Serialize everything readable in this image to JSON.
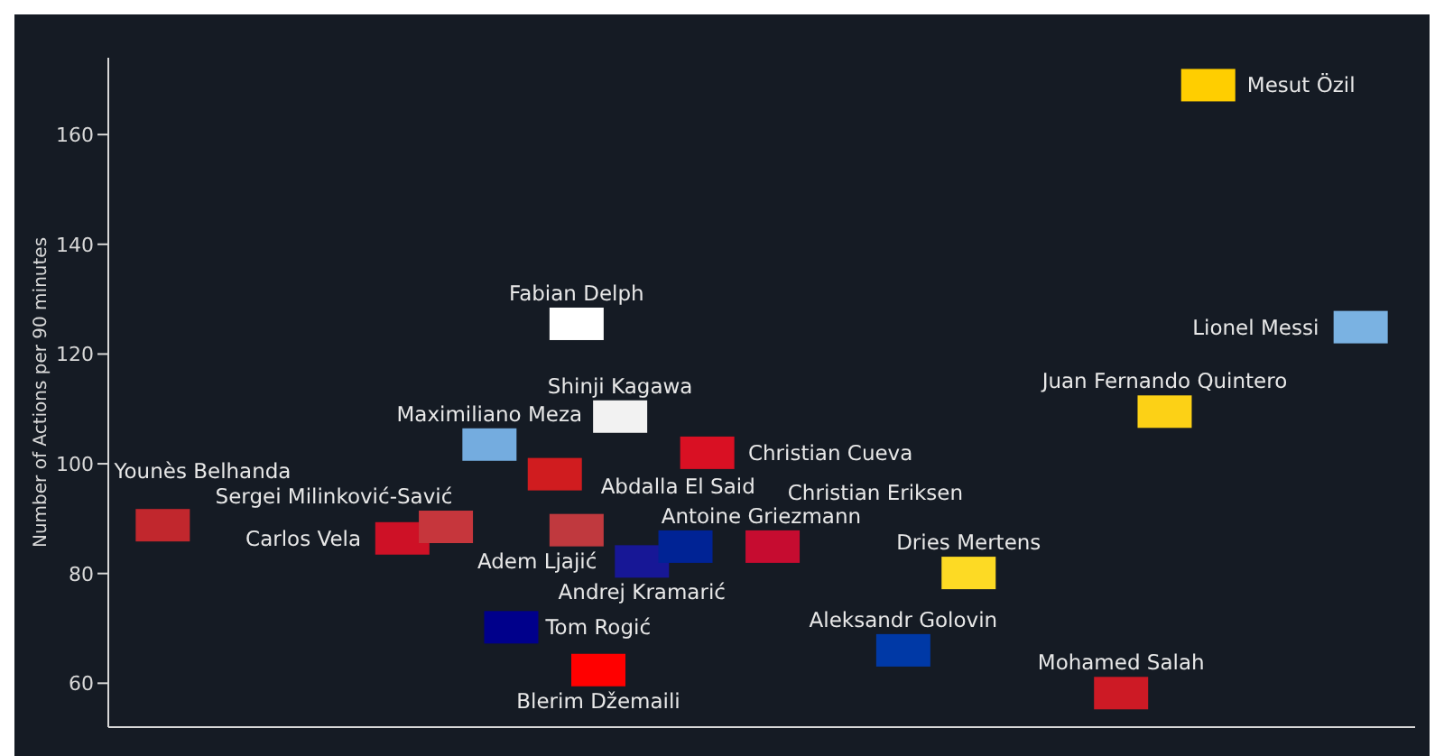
{
  "chart_data": {
    "type": "scatter",
    "ylabel": "Number of Actions per 90 minutes",
    "marker": "square",
    "ylim": [
      52,
      174
    ],
    "yticks": [
      60,
      80,
      100,
      120,
      140,
      160
    ],
    "categories": [
      null,
      null,
      null,
      null,
      null,
      null,
      null,
      null,
      null,
      null,
      null,
      null,
      null,
      null,
      null,
      null,
      null,
      null,
      null,
      null,
      null,
      null,
      null,
      null,
      null,
      null,
      null,
      null,
      null,
      null,
      null,
      null,
      null,
      null,
      null,
      null,
      null,
      null,
      null,
      null,
      null,
      null,
      null,
      null,
      null,
      null,
      null,
      null,
      null,
      null,
      null,
      null,
      null,
      null,
      null,
      null,
      null,
      null,
      null,
      null
    ],
    "series": [
      {
        "name": "Younès Belhanda",
        "color": "#c1272d",
        "values": [
          null,
          null,
          88.8,
          null,
          null,
          null,
          null,
          null,
          null,
          null,
          null,
          null,
          null,
          null,
          null,
          null,
          null,
          null,
          null,
          null,
          null,
          null,
          null,
          null,
          null,
          null,
          null,
          null,
          null,
          null,
          null,
          null,
          null,
          null,
          null,
          null,
          null,
          null,
          null,
          null,
          null,
          null,
          null,
          null,
          null,
          null,
          null,
          null,
          null,
          null,
          null,
          null,
          null,
          null,
          null,
          null,
          null,
          null,
          null,
          null
        ]
      },
      {
        "name": "Carlos Vela",
        "color": "#ce1126",
        "values": [
          null,
          null,
          null,
          null,
          null,
          null,
          null,
          null,
          null,
          null,
          null,
          null,
          null,
          86.4,
          null,
          null,
          null,
          null,
          null,
          null,
          null,
          null,
          null,
          null,
          null,
          null,
          null,
          null,
          null,
          null,
          null,
          null,
          null,
          null,
          null,
          null,
          null,
          null,
          null,
          null,
          null,
          null,
          null,
          null,
          null,
          null,
          null,
          null,
          null,
          null,
          null,
          null,
          null,
          null,
          null,
          null,
          null,
          null,
          null,
          null
        ]
      },
      {
        "name": "Sergei Milinković-Savić",
        "color": "#c6363c",
        "values": [
          null,
          null,
          null,
          null,
          null,
          null,
          null,
          null,
          null,
          null,
          null,
          null,
          null,
          null,
          null,
          88.5,
          null,
          null,
          null,
          null,
          null,
          null,
          null,
          null,
          null,
          null,
          null,
          null,
          null,
          null,
          null,
          null,
          null,
          null,
          null,
          null,
          null,
          null,
          null,
          null,
          null,
          null,
          null,
          null,
          null,
          null,
          null,
          null,
          null,
          null,
          null,
          null,
          null,
          null,
          null,
          null,
          null,
          null,
          null,
          null
        ]
      },
      {
        "name": "Maximiliano Meza",
        "color": "#74acdf",
        "values": [
          null,
          null,
          null,
          null,
          null,
          null,
          null,
          null,
          null,
          null,
          null,
          null,
          null,
          null,
          null,
          null,
          null,
          103.5,
          null,
          null,
          null,
          null,
          null,
          null,
          null,
          null,
          null,
          null,
          null,
          null,
          null,
          null,
          null,
          null,
          null,
          null,
          null,
          null,
          null,
          null,
          null,
          null,
          null,
          null,
          null,
          null,
          null,
          null,
          null,
          null,
          null,
          null,
          null,
          null,
          null,
          null,
          null,
          null,
          null,
          null
        ]
      },
      {
        "name": "Fabian Delph",
        "color": "#ffffff",
        "values": [
          null,
          null,
          null,
          null,
          null,
          null,
          null,
          null,
          null,
          null,
          null,
          null,
          null,
          null,
          null,
          null,
          null,
          null,
          null,
          null,
          null,
          125.5,
          null,
          null,
          null,
          null,
          null,
          null,
          null,
          null,
          null,
          null,
          null,
          null,
          null,
          null,
          null,
          null,
          null,
          null,
          null,
          null,
          null,
          null,
          null,
          null,
          null,
          null,
          null,
          null,
          null,
          null,
          null,
          null,
          null,
          null,
          null,
          null,
          null,
          null
        ]
      },
      {
        "name": "Shinji Kagawa",
        "color": "#f2f2f2",
        "values": [
          null,
          null,
          null,
          null,
          null,
          null,
          null,
          null,
          null,
          null,
          null,
          null,
          null,
          null,
          null,
          null,
          null,
          null,
          null,
          null,
          null,
          null,
          null,
          108.6,
          null,
          null,
          null,
          null,
          null,
          null,
          null,
          null,
          null,
          null,
          null,
          null,
          null,
          null,
          null,
          null,
          null,
          null,
          null,
          null,
          null,
          null,
          null,
          null,
          null,
          null,
          null,
          null,
          null,
          null,
          null,
          null,
          null,
          null,
          null,
          null
        ]
      },
      {
        "name": "Abdalla El Said",
        "color": "#d01c1f",
        "values": [
          null,
          null,
          null,
          null,
          null,
          null,
          null,
          null,
          null,
          null,
          null,
          null,
          null,
          null,
          null,
          null,
          null,
          null,
          null,
          null,
          98.1,
          null,
          null,
          null,
          null,
          null,
          null,
          null,
          null,
          null,
          null,
          null,
          null,
          null,
          null,
          null,
          null,
          null,
          null,
          null,
          null,
          null,
          null,
          null,
          null,
          null,
          null,
          null,
          null,
          null,
          null,
          null,
          null,
          null,
          null,
          null,
          null,
          null,
          null,
          null
        ]
      },
      {
        "name": "Adem Ljajić",
        "color": "#c0393e",
        "values": [
          null,
          null,
          null,
          null,
          null,
          null,
          null,
          null,
          null,
          null,
          null,
          null,
          null,
          null,
          null,
          null,
          null,
          null,
          null,
          null,
          null,
          87.9,
          null,
          null,
          null,
          null,
          null,
          null,
          null,
          null,
          null,
          null,
          null,
          null,
          null,
          null,
          null,
          null,
          null,
          null,
          null,
          null,
          null,
          null,
          null,
          null,
          null,
          null,
          null,
          null,
          null,
          null,
          null,
          null,
          null,
          null,
          null,
          null,
          null,
          null
        ]
      },
      {
        "name": "Andrej Kramarić",
        "color": "#171796",
        "values": [
          null,
          null,
          null,
          null,
          null,
          null,
          null,
          null,
          null,
          null,
          null,
          null,
          null,
          null,
          null,
          null,
          null,
          null,
          null,
          null,
          null,
          null,
          null,
          null,
          82.2,
          null,
          null,
          null,
          null,
          null,
          null,
          null,
          null,
          null,
          null,
          null,
          null,
          null,
          null,
          null,
          null,
          null,
          null,
          null,
          null,
          null,
          null,
          null,
          null,
          null,
          null,
          null,
          null,
          null,
          null,
          null,
          null,
          null,
          null,
          null
        ]
      },
      {
        "name": "Antoine Griezmann",
        "color": "#002395",
        "values": [
          null,
          null,
          null,
          null,
          null,
          null,
          null,
          null,
          null,
          null,
          null,
          null,
          null,
          null,
          null,
          null,
          null,
          null,
          null,
          null,
          null,
          null,
          null,
          null,
          null,
          null,
          84.9,
          null,
          null,
          null,
          null,
          null,
          null,
          null,
          null,
          null,
          null,
          null,
          null,
          null,
          null,
          null,
          null,
          null,
          null,
          null,
          null,
          null,
          null,
          null,
          null,
          null,
          null,
          null,
          null,
          null,
          null,
          null,
          null,
          null
        ]
      },
      {
        "name": "Christian Cueva",
        "color": "#d91023",
        "values": [
          null,
          null,
          null,
          null,
          null,
          null,
          null,
          null,
          null,
          null,
          null,
          null,
          null,
          null,
          null,
          null,
          null,
          null,
          null,
          null,
          null,
          null,
          null,
          null,
          null,
          null,
          null,
          102.0,
          null,
          null,
          null,
          null,
          null,
          null,
          null,
          null,
          null,
          null,
          null,
          null,
          null,
          null,
          null,
          null,
          null,
          null,
          null,
          null,
          null,
          null,
          null,
          null,
          null,
          null,
          null,
          null,
          null,
          null,
          null,
          null
        ]
      },
      {
        "name": "Christian Eriksen",
        "color": "#c60c30",
        "values": [
          null,
          null,
          null,
          null,
          null,
          null,
          null,
          null,
          null,
          null,
          null,
          null,
          null,
          null,
          null,
          null,
          null,
          null,
          null,
          null,
          null,
          null,
          null,
          null,
          null,
          null,
          null,
          null,
          null,
          null,
          84.9,
          null,
          null,
          null,
          null,
          null,
          null,
          null,
          null,
          null,
          null,
          null,
          null,
          null,
          null,
          null,
          null,
          null,
          null,
          null,
          null,
          null,
          null,
          null,
          null,
          null,
          null,
          null,
          null,
          null
        ]
      },
      {
        "name": "Tom Rogić",
        "color": "#00008b",
        "values": [
          null,
          null,
          null,
          null,
          null,
          null,
          null,
          null,
          null,
          null,
          null,
          null,
          null,
          null,
          null,
          null,
          null,
          null,
          70.2,
          null,
          null,
          null,
          null,
          null,
          null,
          null,
          null,
          null,
          null,
          null,
          null,
          null,
          null,
          null,
          null,
          null,
          null,
          null,
          null,
          null,
          null,
          null,
          null,
          null,
          null,
          null,
          null,
          null,
          null,
          null,
          null,
          null,
          null,
          null,
          null,
          null,
          null,
          null,
          null,
          null
        ]
      },
      {
        "name": "Blerim Džemaili",
        "color": "#ff0000",
        "values": [
          null,
          null,
          null,
          null,
          null,
          null,
          null,
          null,
          null,
          null,
          null,
          null,
          null,
          null,
          null,
          null,
          null,
          null,
          null,
          null,
          null,
          null,
          62.4,
          null,
          null,
          null,
          null,
          null,
          null,
          null,
          null,
          null,
          null,
          null,
          null,
          null,
          null,
          null,
          null,
          null,
          null,
          null,
          null,
          null,
          null,
          null,
          null,
          null,
          null,
          null,
          null,
          null,
          null,
          null,
          null,
          null,
          null,
          null,
          null,
          null
        ]
      },
      {
        "name": "Aleksandr Golovin",
        "color": "#0039a6",
        "values": [
          null,
          null,
          null,
          null,
          null,
          null,
          null,
          null,
          null,
          null,
          null,
          null,
          null,
          null,
          null,
          null,
          null,
          null,
          null,
          null,
          null,
          null,
          null,
          null,
          null,
          null,
          null,
          null,
          null,
          null,
          null,
          null,
          null,
          null,
          null,
          null,
          66.0,
          null,
          null,
          null,
          null,
          null,
          null,
          null,
          null,
          null,
          null,
          null,
          null,
          null,
          null,
          null,
          null,
          null,
          null,
          null,
          null,
          null,
          null,
          null
        ]
      },
      {
        "name": "Dries Mertens",
        "color": "#fdda24",
        "values": [
          null,
          null,
          null,
          null,
          null,
          null,
          null,
          null,
          null,
          null,
          null,
          null,
          null,
          null,
          null,
          null,
          null,
          null,
          null,
          null,
          null,
          null,
          null,
          null,
          null,
          null,
          null,
          null,
          null,
          null,
          null,
          null,
          null,
          null,
          null,
          null,
          null,
          null,
          null,
          80.1,
          null,
          null,
          null,
          null,
          null,
          null,
          null,
          null,
          null,
          null,
          null,
          null,
          null,
          null,
          null,
          null,
          null,
          null,
          null,
          null
        ]
      },
      {
        "name": "Mohamed Salah",
        "color": "#cd1a25",
        "values": [
          null,
          null,
          null,
          null,
          null,
          null,
          null,
          null,
          null,
          null,
          null,
          null,
          null,
          null,
          null,
          null,
          null,
          null,
          null,
          null,
          null,
          null,
          null,
          null,
          null,
          null,
          null,
          null,
          null,
          null,
          null,
          null,
          null,
          null,
          null,
          null,
          null,
          null,
          null,
          null,
          null,
          null,
          null,
          null,
          null,
          null,
          58.2,
          null,
          null,
          null,
          null,
          null,
          null,
          null,
          null,
          null,
          null,
          null,
          null,
          null
        ]
      },
      {
        "name": "Juan Fernando Quintero",
        "color": "#fcd116",
        "values": [
          null,
          null,
          null,
          null,
          null,
          null,
          null,
          null,
          null,
          null,
          null,
          null,
          null,
          null,
          null,
          null,
          null,
          null,
          null,
          null,
          null,
          null,
          null,
          null,
          null,
          null,
          null,
          null,
          null,
          null,
          null,
          null,
          null,
          null,
          null,
          null,
          null,
          null,
          null,
          null,
          null,
          null,
          null,
          null,
          null,
          null,
          null,
          null,
          109.5,
          null,
          null,
          null,
          null,
          null,
          null,
          null,
          null,
          null,
          null,
          null
        ]
      },
      {
        "name": "Mesut Özil",
        "color": "#ffce00",
        "values": [
          null,
          null,
          null,
          null,
          null,
          null,
          null,
          null,
          null,
          null,
          null,
          null,
          null,
          null,
          null,
          null,
          null,
          null,
          null,
          null,
          null,
          null,
          null,
          null,
          null,
          null,
          null,
          null,
          null,
          null,
          null,
          null,
          null,
          null,
          null,
          null,
          null,
          null,
          null,
          null,
          null,
          null,
          null,
          null,
          null,
          null,
          null,
          null,
          null,
          null,
          169.0,
          null,
          null,
          null,
          null,
          null,
          null,
          null,
          null,
          null
        ]
      },
      {
        "name": "Lionel Messi",
        "color": "#7ab2e2",
        "values": [
          null,
          null,
          null,
          null,
          null,
          null,
          null,
          null,
          null,
          null,
          null,
          null,
          null,
          null,
          null,
          null,
          null,
          null,
          null,
          null,
          null,
          null,
          null,
          null,
          null,
          null,
          null,
          null,
          null,
          null,
          null,
          null,
          null,
          null,
          null,
          null,
          null,
          null,
          null,
          null,
          null,
          null,
          null,
          null,
          null,
          null,
          null,
          null,
          null,
          null,
          null,
          null,
          null,
          null,
          null,
          null,
          null,
          124.9,
          null,
          null
        ]
      }
    ]
  }
}
